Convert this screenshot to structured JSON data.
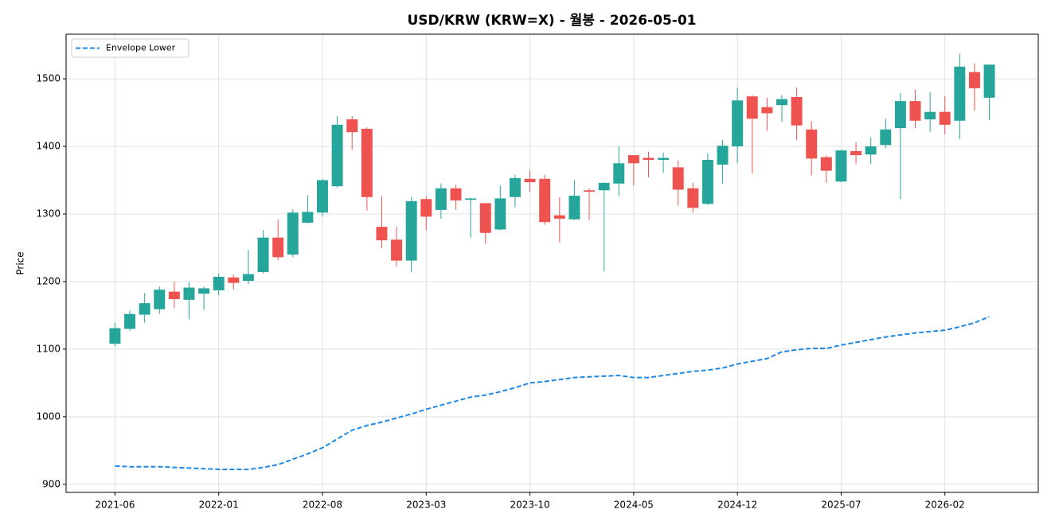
{
  "chart_data": {
    "type": "candlestick",
    "title": "USD/KRW (KRW=X) - 월봉 - 2026-05-01",
    "y_label": "Price",
    "x": [
      "2021-06",
      "2021-07",
      "2021-08",
      "2021-09",
      "2021-10",
      "2021-11",
      "2021-12",
      "2022-01",
      "2022-02",
      "2022-03",
      "2022-04",
      "2022-05",
      "2022-06",
      "2022-07",
      "2022-08",
      "2022-09",
      "2022-10",
      "2022-11",
      "2022-12",
      "2023-01",
      "2023-02",
      "2023-03",
      "2023-04",
      "2023-05",
      "2023-06",
      "2023-07",
      "2023-08",
      "2023-09",
      "2023-10",
      "2023-11",
      "2023-12",
      "2024-01",
      "2024-02",
      "2024-03",
      "2024-04",
      "2024-05",
      "2024-06",
      "2024-07",
      "2024-08",
      "2024-09",
      "2024-10",
      "2024-11",
      "2024-12",
      "2025-01",
      "2025-02",
      "2025-03",
      "2025-04",
      "2025-05",
      "2025-06",
      "2025-07",
      "2025-08",
      "2025-09",
      "2025-10",
      "2025-11",
      "2025-12",
      "2026-01",
      "2026-02",
      "2026-03",
      "2026-04",
      "2026-05"
    ],
    "open": [
      1108,
      1130,
      1151,
      1159,
      1185,
      1173,
      1182,
      1187,
      1206,
      1201,
      1214,
      1265,
      1240,
      1287,
      1302,
      1341,
      1440,
      1426,
      1281,
      1262,
      1231,
      1322,
      1306,
      1338,
      1321,
      1316,
      1277,
      1325,
      1352,
      1352,
      1298,
      1292,
      1335,
      1335,
      1345,
      1387,
      1383,
      1380,
      1369,
      1338,
      1315,
      1373,
      1400,
      1474,
      1458,
      1461,
      1473,
      1425,
      1384,
      1348,
      1393,
      1388,
      1402,
      1427,
      1467,
      1440,
      1451,
      1438,
      1510,
      1472
    ],
    "high": [
      1139,
      1157,
      1183,
      1193,
      1200,
      1199,
      1193,
      1212,
      1210,
      1247,
      1276,
      1292,
      1307,
      1328,
      1352,
      1445,
      1445,
      1428,
      1326,
      1281,
      1325,
      1326,
      1345,
      1343,
      1324,
      1316,
      1342,
      1358,
      1365,
      1358,
      1325,
      1350,
      1338,
      1347,
      1400,
      1387,
      1392,
      1391,
      1379,
      1346,
      1390,
      1410,
      1487,
      1476,
      1472,
      1476,
      1487,
      1437,
      1386,
      1395,
      1406,
      1413,
      1441,
      1479,
      1484,
      1480,
      1474,
      1537,
      1523,
      1521
    ],
    "low": [
      1104,
      1127,
      1139,
      1152,
      1161,
      1144,
      1158,
      1180,
      1188,
      1196,
      1212,
      1232,
      1236,
      1286,
      1296,
      1339,
      1395,
      1305,
      1249,
      1222,
      1214,
      1276,
      1293,
      1306,
      1265,
      1256,
      1276,
      1310,
      1333,
      1284,
      1258,
      1291,
      1291,
      1215,
      1327,
      1342,
      1354,
      1361,
      1312,
      1302,
      1313,
      1345,
      1375,
      1360,
      1423,
      1436,
      1409,
      1357,
      1346,
      1347,
      1374,
      1374,
      1397,
      1322,
      1427,
      1421,
      1418,
      1411,
      1453,
      1439
    ],
    "close": [
      1131,
      1152,
      1168,
      1188,
      1174,
      1191,
      1190,
      1207,
      1198,
      1211,
      1265,
      1236,
      1302,
      1303,
      1350,
      1432,
      1421,
      1325,
      1261,
      1231,
      1319,
      1296,
      1338,
      1320,
      1323,
      1272,
      1323,
      1353,
      1347,
      1288,
      1293,
      1327,
      1333,
      1346,
      1375,
      1375,
      1380,
      1383,
      1336,
      1309,
      1380,
      1401,
      1468,
      1441,
      1449,
      1470,
      1431,
      1382,
      1364,
      1394,
      1387,
      1400,
      1425,
      1467,
      1438,
      1451,
      1432,
      1518,
      1486,
      1521
    ],
    "up_color": "#26a69a",
    "down_color": "#ef5350",
    "series": [
      {
        "name": "Envelope Lower",
        "color": "#1e88e5",
        "values": [
          927,
          926,
          926,
          926,
          925,
          924,
          923,
          922,
          922,
          922,
          925,
          929,
          937,
          945,
          954,
          967,
          980,
          987,
          992,
          998,
          1004,
          1011,
          1017,
          1023,
          1029,
          1032,
          1037,
          1043,
          1050,
          1052,
          1055,
          1058,
          1059,
          1060,
          1061,
          1058,
          1058,
          1061,
          1064,
          1067,
          1069,
          1072,
          1078,
          1082,
          1086,
          1096,
          1099,
          1101,
          1101,
          1106,
          1110,
          1114,
          1118,
          1121,
          1124,
          1126,
          1128,
          1133,
          1139,
          1148
        ]
      }
    ],
    "xticks": [
      "2021-06",
      "2022-01",
      "2022-08",
      "2023-03",
      "2023-10",
      "2024-05",
      "2024-12",
      "2025-07",
      "2026-02"
    ],
    "ylim": [
      888,
      1566
    ],
    "yticks": [
      900,
      1000,
      1100,
      1200,
      1300,
      1400,
      1500
    ],
    "grid": true,
    "legend": "upper left"
  }
}
